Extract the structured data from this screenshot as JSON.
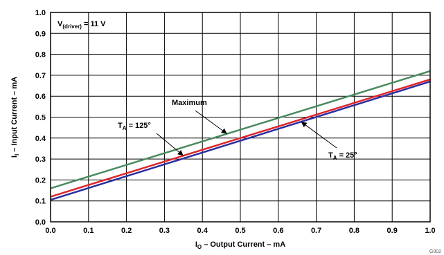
{
  "chart_data": {
    "type": "line",
    "x": [
      0.0,
      1.0
    ],
    "series": [
      {
        "name": "Maximum",
        "values": [
          0.16,
          0.72
        ],
        "color": "#4a8a60"
      },
      {
        "name": "TA = 125°",
        "values": [
          0.12,
          0.68
        ],
        "color": "#e0252a"
      },
      {
        "name": "TA = 25°",
        "values": [
          0.105,
          0.67
        ],
        "color": "#2b2fa0"
      }
    ],
    "xlim": [
      0.0,
      1.0
    ],
    "ylim": [
      0.0,
      1.0
    ],
    "xticks": [
      "0.0",
      "0.1",
      "0.2",
      "0.3",
      "0.4",
      "0.5",
      "0.6",
      "0.7",
      "0.8",
      "0.9",
      "1.0"
    ],
    "yticks": [
      "0.0",
      "0.1",
      "0.2",
      "0.3",
      "0.4",
      "0.5",
      "0.6",
      "0.7",
      "0.8",
      "0.9",
      "1.0"
    ],
    "grid": true,
    "xlabel": {
      "sym": "I",
      "sub": "O",
      "rest": " – Output Current – mA"
    },
    "ylabel": {
      "sym": "I",
      "sub": "I",
      "rest": " – Input Current – mA"
    },
    "condition": {
      "sym": "V",
      "sub": "(driver)",
      "rest": " = 11 V"
    },
    "annotations": {
      "maximum": "Maximum",
      "ta125": {
        "sym": "T",
        "sub": "A",
        "rest": " = 125°"
      },
      "ta25": {
        "sym": "T",
        "sub": "A",
        "rest": " = 25°"
      }
    },
    "figure_code": "G002"
  }
}
